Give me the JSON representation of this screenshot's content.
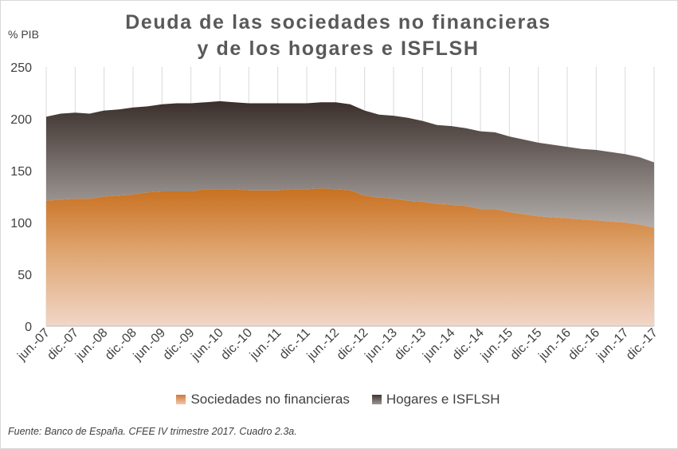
{
  "chart_data": {
    "type": "area",
    "stacked": true,
    "title": "Deuda de las sociedades no financieras",
    "title_line2": "y   de los hogares e ISFLSH",
    "ylabel": "% PIB",
    "ylim": [
      0,
      250
    ],
    "yticks": [
      0,
      50,
      100,
      150,
      200,
      250
    ],
    "grid": "vertical",
    "legend_position": "bottom",
    "categories": [
      "jun.-07",
      "sep.-07",
      "dic.-07",
      "mar.-08",
      "jun.-08",
      "sep.-08",
      "dic.-08",
      "mar.-09",
      "jun.-09",
      "sep.-09",
      "dic.-09",
      "mar.-10",
      "jun.-10",
      "sep.-10",
      "dic.-10",
      "mar.-11",
      "jun.-11",
      "sep.-11",
      "dic.-11",
      "mar.-12",
      "jun.-12",
      "sep.-12",
      "dic.-12",
      "mar.-13",
      "jun.-13",
      "sep.-13",
      "dic.-13",
      "mar.-14",
      "jun.-14",
      "sep.-14",
      "dic.-14",
      "mar.-15",
      "jun.-15",
      "sep.-15",
      "dic.-15",
      "mar.-16",
      "jun.-16",
      "sep.-16",
      "dic.-16",
      "mar.-17",
      "jun.-17",
      "sep.-17",
      "dic.-17"
    ],
    "tick_labels": [
      "jun.-07",
      "dic.-07",
      "jun.-08",
      "dic.-08",
      "jun.-09",
      "dic.-09",
      "jun.-10",
      "dic.-10",
      "jun.-11",
      "dic.-11",
      "jun.-12",
      "dic.-12",
      "jun.-13",
      "dic.-13",
      "jun.-14",
      "dic.-14",
      "jun.-15",
      "dic.-15",
      "jun.-16",
      "dic.-16",
      "jun.-17",
      "dic.-17"
    ],
    "series": [
      {
        "name": "Sociedades no financieras",
        "values": [
          121,
          122,
          123,
          123,
          125,
          126,
          127,
          129,
          130,
          130,
          130,
          132,
          132,
          132,
          131,
          131,
          131,
          132,
          132,
          133,
          132,
          131,
          126,
          124,
          123,
          121,
          120,
          118,
          117,
          116,
          113,
          113,
          110,
          108,
          106,
          105,
          104,
          103,
          102,
          101,
          100,
          98,
          95
        ]
      },
      {
        "name": "Hogares e ISFLSH",
        "values": [
          81,
          83,
          83,
          82,
          83,
          83,
          84,
          83,
          84,
          85,
          85,
          84,
          85,
          84,
          84,
          84,
          84,
          83,
          83,
          83,
          84,
          83,
          82,
          80,
          80,
          80,
          78,
          76,
          76,
          75,
          75,
          74,
          73,
          72,
          71,
          70,
          69,
          68,
          68,
          67,
          66,
          65,
          63
        ]
      }
    ],
    "colors": {
      "sociedades_top": "#d07a36",
      "sociedades_bottom": "#f2d4c4",
      "hogares_top": "#3f3530",
      "hogares_bottom": "#a9a3a0",
      "grid": "#d9d9d9"
    }
  },
  "legend": {
    "items": [
      "Sociedades no financieras",
      "Hogares e ISFLSH"
    ]
  },
  "source": "Fuente: Banco de España. CFEE IV trimestre 2017. Cuadro 2.3a."
}
